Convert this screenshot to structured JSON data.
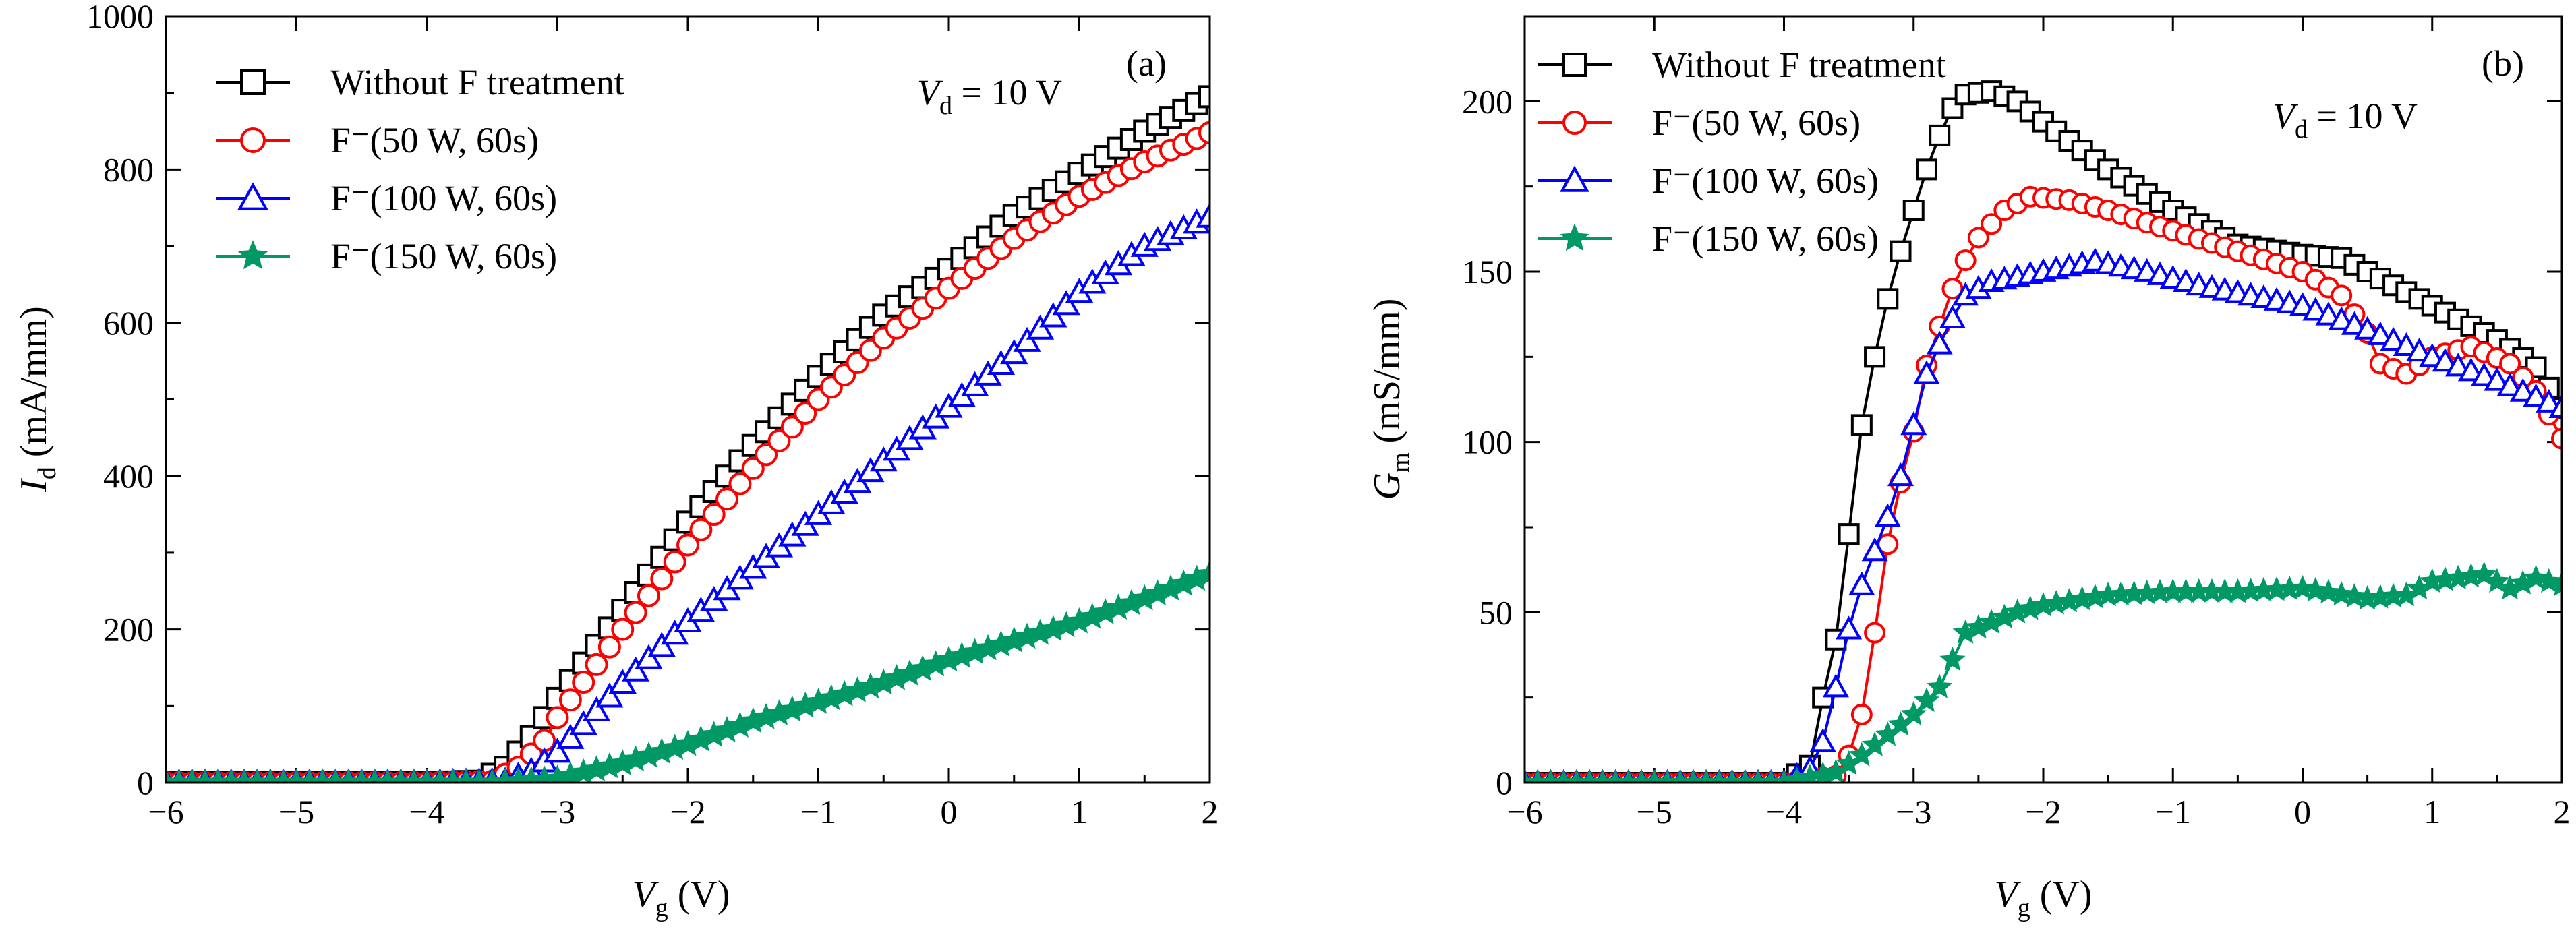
{
  "chart_data": [
    {
      "type": "scatter",
      "panel_label": "(a)",
      "annotation": {
        "var": "V",
        "sub": "d",
        "text": " = 10 V"
      },
      "xlabel": {
        "var": "V",
        "sub": "g",
        "unit": " (V)"
      },
      "ylabel": {
        "var": "I",
        "sub": "d",
        "unit": " (mA/mm)"
      },
      "xlim": [
        -6,
        2
      ],
      "ylim": [
        0,
        1000
      ],
      "xticks": [
        -6,
        -5,
        -4,
        -3,
        -2,
        -1,
        0,
        1,
        2
      ],
      "yticks": [
        0,
        200,
        400,
        600,
        800,
        1000
      ],
      "legend_position": "top-left",
      "grid": false,
      "series": [
        {
          "name": "Without F treatment",
          "color": "#000000",
          "marker": "square",
          "points": [
            [
              -6,
              0
            ],
            [
              -5,
              0
            ],
            [
              -4,
              0
            ],
            [
              -3.6,
              2
            ],
            [
              -3.4,
              20
            ],
            [
              -3.2,
              60
            ],
            [
              -3,
              110
            ],
            [
              -2.5,
              225
            ],
            [
              -2,
              340
            ],
            [
              -1.5,
              440
            ],
            [
              -1,
              530
            ],
            [
              -0.5,
              610
            ],
            [
              0,
              670
            ],
            [
              0.5,
              740
            ],
            [
              1,
              795
            ],
            [
              1.5,
              850
            ],
            [
              2,
              895
            ]
          ]
        },
        {
          "name": "F⁻(50 W, 60s)",
          "color": "#ff0000",
          "marker": "circle",
          "points": [
            [
              -6,
              0
            ],
            [
              -5,
              0
            ],
            [
              -4,
              0
            ],
            [
              -3.5,
              2
            ],
            [
              -3.3,
              20
            ],
            [
              -3.1,
              55
            ],
            [
              -3,
              85
            ],
            [
              -2.5,
              200
            ],
            [
              -2,
              310
            ],
            [
              -1.5,
              410
            ],
            [
              -1,
              500
            ],
            [
              -0.5,
              580
            ],
            [
              0,
              645
            ],
            [
              0.5,
              710
            ],
            [
              1,
              765
            ],
            [
              1.5,
              810
            ],
            [
              2,
              848
            ]
          ]
        },
        {
          "name": "F⁻(100 W, 60s)",
          "color": "#0000ff",
          "marker": "triangle",
          "points": [
            [
              -6,
              0
            ],
            [
              -5,
              0
            ],
            [
              -4,
              0
            ],
            [
              -3.4,
              2
            ],
            [
              -3.2,
              15
            ],
            [
              -3,
              40
            ],
            [
              -2.5,
              130
            ],
            [
              -2,
              210
            ],
            [
              -1.5,
              280
            ],
            [
              -1,
              350
            ],
            [
              -0.5,
              420
            ],
            [
              0,
              490
            ],
            [
              0.5,
              560
            ],
            [
              1,
              640
            ],
            [
              1.5,
              700
            ],
            [
              2,
              738
            ]
          ]
        },
        {
          "name": "F⁻(150 W, 60s)",
          "color": "#009966",
          "marker": "star",
          "points": [
            [
              -6,
              0
            ],
            [
              -5,
              0
            ],
            [
              -4,
              0
            ],
            [
              -3.5,
              0
            ],
            [
              -3,
              5
            ],
            [
              -2.5,
              25
            ],
            [
              -2,
              50
            ],
            [
              -1.5,
              80
            ],
            [
              -1,
              105
            ],
            [
              -0.5,
              130
            ],
            [
              0,
              160
            ],
            [
              0.5,
              185
            ],
            [
              1,
              210
            ],
            [
              1.5,
              240
            ],
            [
              2,
              272
            ]
          ]
        }
      ]
    },
    {
      "type": "scatter",
      "panel_label": "(b)",
      "annotation": {
        "var": "V",
        "sub": "d",
        "text": " = 10 V"
      },
      "xlabel": {
        "var": "V",
        "sub": "g",
        "unit": " (V)"
      },
      "ylabel": {
        "var": "G",
        "sub": "m",
        "unit": " (mS/mm)"
      },
      "xlim": [
        -6,
        2
      ],
      "ylim": [
        0,
        225
      ],
      "xticks": [
        -6,
        -5,
        -4,
        -3,
        -2,
        -1,
        0,
        1,
        2
      ],
      "yticks": [
        0,
        50,
        100,
        150,
        200
      ],
      "legend_position": "top-left",
      "grid": false,
      "series": [
        {
          "name": "Without F treatment",
          "color": "#000000",
          "marker": "square",
          "points": [
            [
              -6,
              0
            ],
            [
              -5,
              0
            ],
            [
              -4,
              0
            ],
            [
              -3.8,
              5
            ],
            [
              -3.7,
              25
            ],
            [
              -3.6,
              42
            ],
            [
              -3.55,
              62
            ],
            [
              -3.45,
              84
            ],
            [
              -3.4,
              105
            ],
            [
              -3.3,
              125
            ],
            [
              -3.2,
              142
            ],
            [
              -3.1,
              156
            ],
            [
              -3,
              168
            ],
            [
              -2.9,
              180
            ],
            [
              -2.8,
              190
            ],
            [
              -2.7,
              198
            ],
            [
              -2.6,
              202
            ],
            [
              -2.4,
              203
            ],
            [
              -2.2,
              200
            ],
            [
              -2,
              194
            ],
            [
              -1.5,
              180
            ],
            [
              -1,
              168
            ],
            [
              -0.5,
              158
            ],
            [
              0,
              155
            ],
            [
              0.3,
              154
            ],
            [
              0.5,
              150
            ],
            [
              1,
              140
            ],
            [
              1.5,
              130
            ],
            [
              1.8,
              122
            ],
            [
              2,
              110
            ]
          ]
        },
        {
          "name": "F⁻(50 W, 60s)",
          "color": "#ff0000",
          "marker": "circle",
          "points": [
            [
              -6,
              0
            ],
            [
              -5,
              0
            ],
            [
              -4,
              0
            ],
            [
              -3.6,
              2
            ],
            [
              -3.5,
              8
            ],
            [
              -3.4,
              20
            ],
            [
              -3.35,
              35
            ],
            [
              -3.25,
              53
            ],
            [
              -3.2,
              70
            ],
            [
              -3.1,
              88
            ],
            [
              -3,
              103
            ],
            [
              -2.95,
              117
            ],
            [
              -2.85,
              128
            ],
            [
              -2.75,
              140
            ],
            [
              -2.65,
              150
            ],
            [
              -2.5,
              160
            ],
            [
              -2.3,
              168
            ],
            [
              -2.1,
              172
            ],
            [
              -1.8,
              171
            ],
            [
              -1.5,
              168
            ],
            [
              -1,
              162
            ],
            [
              -0.5,
              156
            ],
            [
              0,
              150
            ],
            [
              0.3,
              143
            ],
            [
              0.5,
              132
            ],
            [
              0.6,
              123
            ],
            [
              0.8,
              120
            ],
            [
              1,
              125
            ],
            [
              1.3,
              128
            ],
            [
              1.6,
              123
            ],
            [
              1.8,
              115
            ],
            [
              2,
              101
            ]
          ]
        },
        {
          "name": "F⁻(100 W, 60s)",
          "color": "#0000ff",
          "marker": "triangle",
          "points": [
            [
              -6,
              0
            ],
            [
              -5,
              0
            ],
            [
              -4,
              0
            ],
            [
              -3.8,
              4
            ],
            [
              -3.7,
              12
            ],
            [
              -3.6,
              28
            ],
            [
              -3.5,
              45
            ],
            [
              -3.4,
              58
            ],
            [
              -3.3,
              68
            ],
            [
              -3.2,
              78
            ],
            [
              -3.1,
              90
            ],
            [
              -3,
              105
            ],
            [
              -2.9,
              120
            ],
            [
              -2.75,
              133
            ],
            [
              -2.6,
              143
            ],
            [
              -2.4,
              147
            ],
            [
              -2,
              150
            ],
            [
              -1.6,
              153
            ],
            [
              -1.2,
              150
            ],
            [
              -0.8,
              146
            ],
            [
              -0.4,
              143
            ],
            [
              0,
              140
            ],
            [
              0.5,
              133
            ],
            [
              1,
              125
            ],
            [
              1.5,
              118
            ],
            [
              2,
              110
            ]
          ]
        },
        {
          "name": "F⁻(150 W, 60s)",
          "color": "#009966",
          "marker": "star",
          "points": [
            [
              -6,
              0
            ],
            [
              -5,
              0
            ],
            [
              -4,
              0
            ],
            [
              -3.6,
              3
            ],
            [
              -3.4,
              8
            ],
            [
              -3.2,
              14
            ],
            [
              -3,
              20
            ],
            [
              -2.8,
              28
            ],
            [
              -2.7,
              36
            ],
            [
              -2.6,
              44
            ],
            [
              -2.4,
              47
            ],
            [
              -2.2,
              50
            ],
            [
              -2,
              52
            ],
            [
              -1.5,
              55
            ],
            [
              -1,
              56
            ],
            [
              -0.5,
              56
            ],
            [
              0,
              57
            ],
            [
              0.5,
              54
            ],
            [
              0.8,
              55
            ],
            [
              1,
              59
            ],
            [
              1.4,
              61
            ],
            [
              1.6,
              57
            ],
            [
              1.8,
              60
            ],
            [
              2,
              58
            ]
          ]
        }
      ]
    }
  ]
}
